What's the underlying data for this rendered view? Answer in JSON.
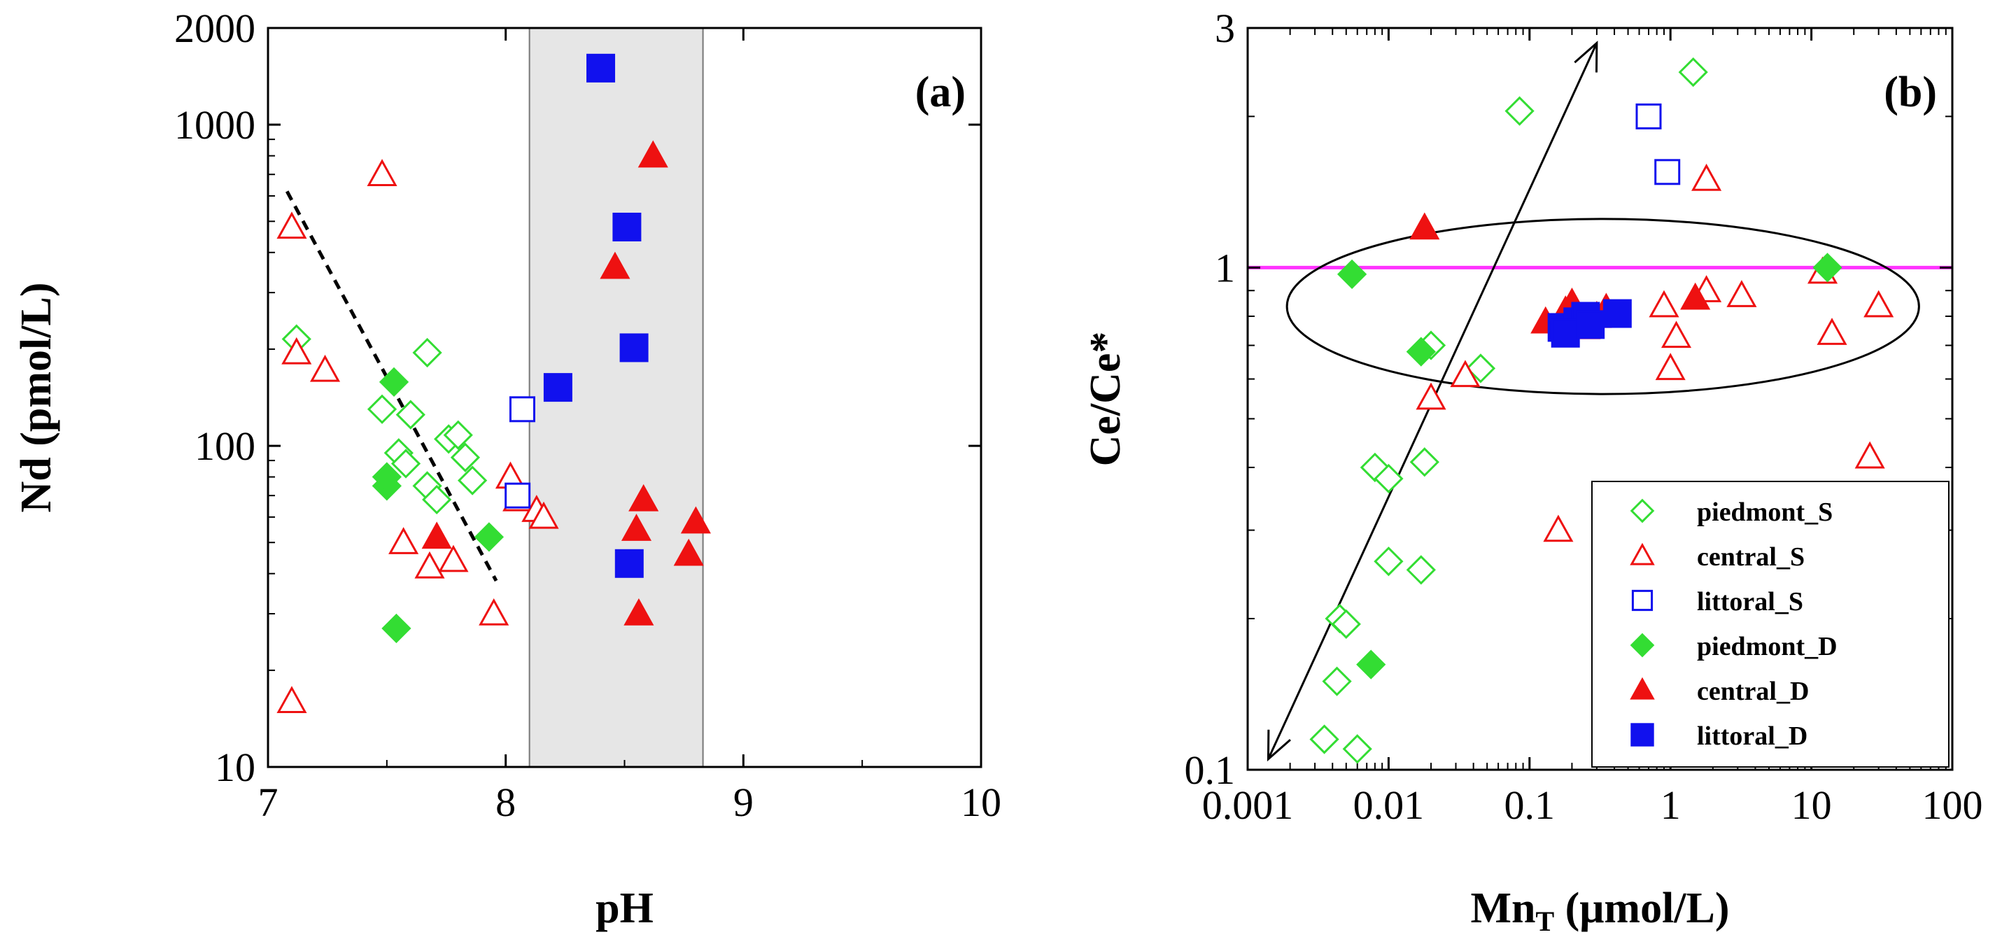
{
  "colors": {
    "piedmont": "#33dd33",
    "central": "#ee1111",
    "littoral": "#1111ee",
    "ref_line": "#ff33ff",
    "ph_band": "#e6e6e6"
  },
  "chart_data": [
    {
      "type": "scatter",
      "panel_label": "(a)",
      "xlabel": "pH",
      "ylabel": "Nd (pmol/L)",
      "xlim": [
        7,
        10
      ],
      "ylim": [
        10,
        2000
      ],
      "yscale": "log",
      "x_ticks": [
        "7",
        "8",
        "9",
        "10"
      ],
      "y_ticks": [
        "10",
        "100",
        "1000",
        "2000"
      ],
      "shaded_band": [
        8.1,
        8.83
      ],
      "trend_line": [
        [
          7.08,
          620
        ],
        [
          7.96,
          38
        ]
      ],
      "series": [
        {
          "name": "piedmont_S",
          "marker": "diamond-open",
          "points": [
            [
              7.12,
              215
            ],
            [
              7.48,
              130
            ],
            [
              7.55,
              95
            ],
            [
              7.58,
              88
            ],
            [
              7.6,
              125
            ],
            [
              7.67,
              195
            ],
            [
              7.67,
              75
            ],
            [
              7.71,
              68
            ],
            [
              7.76,
              105
            ],
            [
              7.8,
              108
            ],
            [
              7.83,
              92
            ],
            [
              7.86,
              78
            ]
          ]
        },
        {
          "name": "central_S",
          "marker": "triangle-open",
          "points": [
            [
              7.1,
              480
            ],
            [
              7.12,
              195
            ],
            [
              7.24,
              172
            ],
            [
              7.48,
              700
            ],
            [
              7.57,
              50
            ],
            [
              7.68,
              42
            ],
            [
              7.78,
              44
            ],
            [
              7.95,
              30
            ],
            [
              8.02,
              80
            ],
            [
              8.05,
              68
            ],
            [
              8.13,
              63
            ],
            [
              8.16,
              60
            ],
            [
              7.1,
              16
            ]
          ]
        },
        {
          "name": "littoral_S",
          "marker": "square-open",
          "points": [
            [
              8.07,
              130
            ],
            [
              8.05,
              70
            ]
          ]
        },
        {
          "name": "piedmont_D",
          "marker": "diamond-filled",
          "points": [
            [
              7.5,
              75
            ],
            [
              7.5,
              80
            ],
            [
              7.53,
              158
            ],
            [
              7.54,
              27
            ],
            [
              7.93,
              52
            ]
          ]
        },
        {
          "name": "central_D",
          "marker": "triangle-filled",
          "points": [
            [
              7.71,
              52
            ],
            [
              8.46,
              360
            ],
            [
              8.62,
              800
            ],
            [
              8.55,
              55
            ],
            [
              8.58,
              68
            ],
            [
              8.56,
              30
            ],
            [
              8.77,
              46
            ],
            [
              8.8,
              58
            ]
          ]
        },
        {
          "name": "littoral_D",
          "marker": "square-filled",
          "points": [
            [
              8.4,
              1500
            ],
            [
              8.51,
              480
            ],
            [
              8.54,
              202
            ],
            [
              8.22,
              152
            ],
            [
              8.52,
              43
            ]
          ]
        }
      ]
    },
    {
      "type": "scatter",
      "panel_label": "(b)",
      "xlabel": "Mn",
      "xlabel_sub": "T",
      "xlabel_unit": " (μmol/L)",
      "ylabel": "Ce/Ce*",
      "xlim": [
        0.001,
        100
      ],
      "ylim": [
        0.1,
        3
      ],
      "xscale": "log",
      "yscale": "log",
      "x_ticks": [
        "0.001",
        "0.01",
        "0.1",
        "1",
        "10",
        "100"
      ],
      "y_ticks": [
        "0.1",
        "1",
        "3"
      ],
      "reference_line_y": 1,
      "arrow": [
        [
          0.0014,
          0.105
        ],
        [
          0.3,
          2.8
        ]
      ],
      "ellipse": {
        "center": [
          0.33,
          0.87
        ],
        "x_range": [
          0.0019,
          58
        ],
        "y_range": [
          0.56,
          1.25
        ]
      },
      "legend_position": "bottom-right",
      "series": [
        {
          "name": "piedmont_S",
          "marker": "diamond-open",
          "points": [
            [
              0.085,
              2.05
            ],
            [
              1.45,
              2.45
            ],
            [
              0.02,
              0.7
            ],
            [
              0.045,
              0.63
            ],
            [
              0.008,
              0.4
            ],
            [
              0.01,
              0.38
            ],
            [
              0.018,
              0.41
            ],
            [
              0.01,
              0.26
            ],
            [
              0.017,
              0.25
            ],
            [
              0.0045,
              0.2
            ],
            [
              0.005,
              0.195
            ],
            [
              0.0043,
              0.15
            ],
            [
              0.0035,
              0.115
            ],
            [
              0.006,
              0.11
            ]
          ]
        },
        {
          "name": "central_S",
          "marker": "triangle-open",
          "points": [
            [
              1.8,
              1.5
            ],
            [
              0.035,
              0.61
            ],
            [
              0.02,
              0.55
            ],
            [
              0.16,
              0.3
            ],
            [
              0.9,
              0.84
            ],
            [
              1.8,
              0.9
            ],
            [
              3.2,
              0.88
            ],
            [
              12,
              0.98
            ],
            [
              30,
              0.84
            ],
            [
              1.1,
              0.73
            ],
            [
              1,
              0.63
            ],
            [
              14,
              0.74
            ],
            [
              26,
              0.42
            ]
          ]
        },
        {
          "name": "littoral_S",
          "marker": "square-open",
          "points": [
            [
              0.7,
              2.0
            ],
            [
              0.95,
              1.55
            ]
          ]
        },
        {
          "name": "piedmont_D",
          "marker": "diamond-filled",
          "points": [
            [
              0.0055,
              0.97
            ],
            [
              0.017,
              0.68
            ],
            [
              0.0075,
              0.162
            ],
            [
              13,
              1.0
            ]
          ]
        },
        {
          "name": "central_D",
          "marker": "triangle-filled",
          "points": [
            [
              0.018,
              1.2
            ],
            [
              0.13,
              0.78
            ],
            [
              0.18,
              0.82
            ],
            [
              0.2,
              0.85
            ],
            [
              0.22,
              0.8
            ],
            [
              0.25,
              0.76
            ],
            [
              0.3,
              0.8
            ],
            [
              1.5,
              0.87
            ],
            [
              0.35,
              0.83
            ]
          ]
        },
        {
          "name": "littoral_D",
          "marker": "square-filled",
          "points": [
            [
              0.17,
              0.76
            ],
            [
              0.22,
              0.78
            ],
            [
              0.25,
              0.8
            ],
            [
              0.42,
              0.81
            ],
            [
              0.18,
              0.74
            ],
            [
              0.27,
              0.77
            ]
          ]
        }
      ]
    }
  ]
}
